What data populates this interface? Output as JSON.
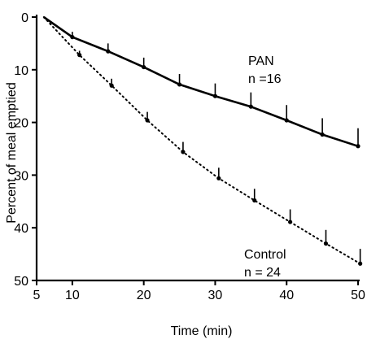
{
  "chart_data": {
    "type": "line",
    "xlabel": "Time (min)",
    "ylabel": "Percent of meal emptied",
    "xlim": [
      5,
      50
    ],
    "ylim": [
      0,
      50
    ],
    "y_inverted": true,
    "x_ticks": [
      5,
      10,
      20,
      30,
      40,
      50
    ],
    "y_ticks": [
      0,
      10,
      20,
      30,
      40,
      50
    ],
    "grid": false,
    "series": [
      {
        "name": "PAN",
        "n_label": "n =16",
        "style": "solid",
        "start": [
          6,
          0
        ],
        "x": [
          10,
          15,
          20,
          25,
          30,
          35,
          40,
          45,
          50
        ],
        "y": [
          3.8,
          6.5,
          9.5,
          12.8,
          15,
          17,
          19.6,
          22.3,
          24.5
        ],
        "err": [
          1,
          1.5,
          1.8,
          2,
          2.4,
          2.7,
          2.9,
          3.1,
          3.4
        ]
      },
      {
        "name": "Control",
        "n_label": "n = 24",
        "style": "dotted",
        "start": [
          6,
          0
        ],
        "x": [
          11,
          15.5,
          20.5,
          25.5,
          30.5,
          35.5,
          40.5,
          45.5,
          50.3
        ],
        "y": [
          7.2,
          13,
          19.6,
          25.6,
          30.6,
          34.8,
          38.9,
          43,
          46.8
        ],
        "err": [
          0.8,
          1.3,
          1.6,
          1.9,
          2,
          2.2,
          2.4,
          2.6,
          2.8
        ]
      }
    ]
  }
}
